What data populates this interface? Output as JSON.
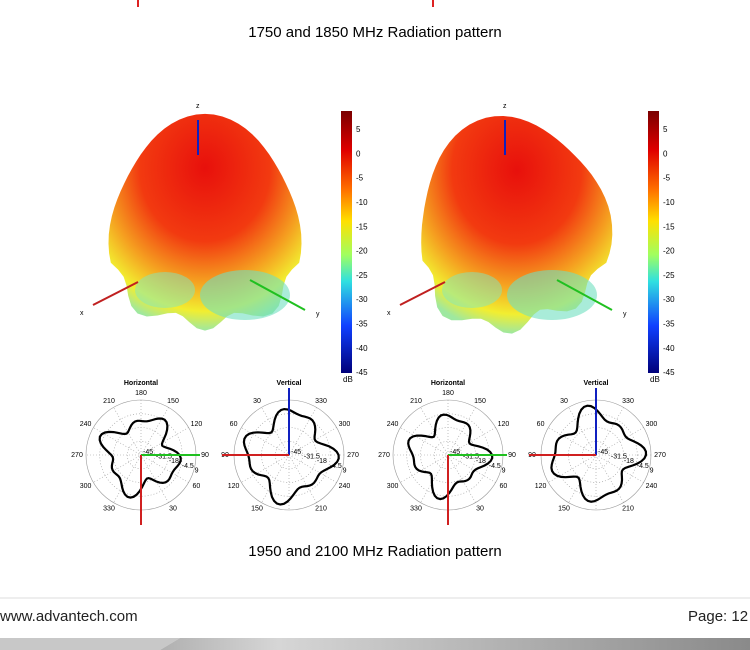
{
  "captions": [
    "1750 and 1850 MHz Radiation pattern",
    "1950 and 2100 MHz Radiation pattern"
  ],
  "panels": [
    {
      "axes": {
        "z": "z",
        "x": "x",
        "y": "y"
      },
      "colorbar": {
        "ticks": [
          5,
          0,
          -5,
          -10,
          -15,
          -20,
          -25,
          -30,
          -35,
          -40,
          -45
        ],
        "unit": "dB"
      },
      "polar": [
        {
          "title": "Horizontal",
          "angles": [
            180,
            150,
            120,
            90,
            60,
            30,
            330,
            300,
            270,
            240,
            210
          ],
          "radii": [
            -45,
            -31.5,
            -18,
            -4.5,
            9
          ]
        },
        {
          "title": "Vertical",
          "angles": [
            330,
            300,
            270,
            240,
            210,
            150,
            120,
            90,
            60,
            30
          ],
          "radii": [
            -45,
            -31.5,
            -18,
            -4.5,
            9
          ]
        }
      ]
    },
    {
      "axes": {
        "z": "z",
        "x": "x",
        "y": "y"
      },
      "colorbar": {
        "ticks": [
          5,
          0,
          -5,
          -10,
          -15,
          -20,
          -25,
          -30,
          -35,
          -40,
          -45
        ],
        "unit": "dB"
      },
      "polar": [
        {
          "title": "Horizontal",
          "angles": [
            180,
            150,
            120,
            90,
            60,
            30,
            330,
            300,
            270,
            240,
            210
          ],
          "radii": [
            -45,
            -31.5,
            -18,
            -4.5,
            9
          ]
        },
        {
          "title": "Vertical",
          "angles": [
            330,
            300,
            270,
            240,
            210,
            150,
            120,
            90,
            60,
            30
          ],
          "radii": [
            -45,
            -31.5,
            -18,
            -4.5,
            9
          ]
        }
      ]
    }
  ],
  "footer": {
    "url": "www.advantech.com",
    "page": "Page: 12"
  }
}
